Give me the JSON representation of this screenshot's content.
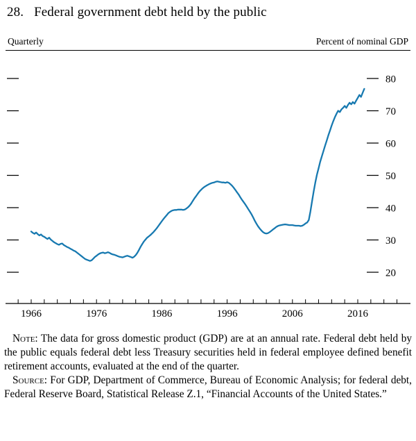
{
  "title": {
    "number": "28.",
    "text": "Federal government debt held by the public"
  },
  "header": {
    "left": "Quarterly",
    "right": "Percent of nominal GDP"
  },
  "chart_data": {
    "type": "line",
    "title": "Federal government debt held by the public",
    "frequency": "Quarterly",
    "ylabel": "Percent of nominal GDP",
    "line_color": "#1779b0",
    "y_ticks": [
      20,
      30,
      40,
      50,
      60,
      70,
      80
    ],
    "ylim": [
      10,
      87
    ],
    "x_ticks_labeled": [
      1966,
      1976,
      1986,
      1996,
      2006,
      2016
    ],
    "x_minor_tick_step": 2,
    "x_start": 1966.0,
    "x_step": 0.25,
    "values": [
      32.6,
      32.2,
      31.9,
      32.3,
      31.8,
      31.4,
      31.7,
      31.2,
      31.0,
      30.6,
      30.3,
      30.7,
      30.1,
      29.7,
      29.3,
      29.0,
      28.7,
      28.5,
      28.8,
      28.9,
      28.4,
      28.1,
      27.8,
      27.6,
      27.3,
      27.0,
      26.7,
      26.5,
      26.1,
      25.7,
      25.3,
      24.9,
      24.5,
      24.1,
      23.9,
      23.7,
      23.5,
      23.7,
      24.2,
      24.7,
      25.1,
      25.5,
      25.8,
      26.0,
      26.1,
      25.9,
      26.0,
      26.2,
      26.0,
      25.7,
      25.5,
      25.4,
      25.2,
      25.0,
      24.8,
      24.7,
      24.6,
      24.8,
      25.0,
      25.1,
      24.9,
      24.7,
      24.5,
      24.8,
      25.3,
      26.0,
      26.9,
      27.9,
      28.7,
      29.5,
      30.1,
      30.7,
      31.1,
      31.5,
      32.0,
      32.5,
      33.1,
      33.7,
      34.4,
      35.1,
      35.8,
      36.5,
      37.1,
      37.7,
      38.3,
      38.7,
      39.0,
      39.2,
      39.3,
      39.3,
      39.4,
      39.4,
      39.4,
      39.3,
      39.4,
      39.7,
      40.1,
      40.6,
      41.3,
      42.1,
      42.9,
      43.6,
      44.3,
      45.0,
      45.5,
      46.0,
      46.4,
      46.7,
      47.0,
      47.3,
      47.5,
      47.7,
      47.8,
      48.0,
      48.1,
      48.0,
      47.9,
      47.8,
      47.8,
      47.7,
      47.9,
      47.7,
      47.3,
      46.8,
      46.2,
      45.5,
      44.8,
      44.1,
      43.3,
      42.5,
      41.8,
      41.1,
      40.3,
      39.5,
      38.7,
      37.9,
      36.9,
      35.9,
      35.0,
      34.2,
      33.5,
      32.9,
      32.4,
      32.1,
      32.0,
      32.1,
      32.4,
      32.8,
      33.2,
      33.6,
      34.0,
      34.3,
      34.5,
      34.6,
      34.7,
      34.8,
      34.8,
      34.7,
      34.6,
      34.6,
      34.6,
      34.5,
      34.4,
      34.4,
      34.4,
      34.3,
      34.4,
      34.7,
      35.1,
      35.4,
      36.2,
      38.8,
      42.0,
      45.0,
      47.8,
      50.2,
      52.2,
      54.2,
      55.9,
      57.5,
      59.2,
      60.8,
      62.4,
      63.9,
      65.4,
      66.8,
      68.0,
      69.1,
      70.0,
      69.6,
      70.4,
      70.9,
      71.5,
      70.9,
      71.8,
      72.5,
      72.0,
      72.7,
      72.2,
      73.1,
      74.0,
      74.9,
      74.3,
      75.6,
      76.8
    ]
  },
  "notes": {
    "note_label": "Note:",
    "note_text": " The data for gross domestic product (GDP) are at an annual rate. Federal debt held by the public equals federal debt less Treasury securities held in federal employee defined benefit retirement accounts, evaluated at the end of the quarter.",
    "source_label": "Source:",
    "source_text": " For GDP, Department of Commerce, Bureau of Economic Analysis; for federal debt, Federal Reserve Board, Statistical Release Z.1, “Financial Accounts of the United States.”"
  }
}
